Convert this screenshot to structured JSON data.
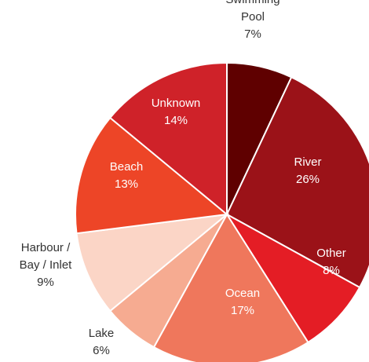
{
  "chart_data": {
    "type": "pie",
    "start_angle_deg": 0,
    "direction": "clockwise",
    "slices": [
      {
        "label": [
          "Swimming",
          "Pool"
        ],
        "value_text": "7%",
        "value": 7,
        "color": "#5f0000",
        "label_color": "#333333",
        "label_placement": "outside"
      },
      {
        "label": [
          "River"
        ],
        "value_text": "26%",
        "value": 26,
        "color": "#9b1218",
        "label_color": "#ffffff",
        "label_placement": "inside"
      },
      {
        "label": [
          "Other"
        ],
        "value_text": "8%",
        "value": 8,
        "color": "#e41d25",
        "label_color": "#ffffff",
        "label_placement": "inside"
      },
      {
        "label": [
          "Ocean"
        ],
        "value_text": "17%",
        "value": 17,
        "color": "#ef775c",
        "label_color": "#ffffff",
        "label_placement": "inside"
      },
      {
        "label": [
          "Lake"
        ],
        "value_text": "6%",
        "value": 6,
        "color": "#f6ab91",
        "label_color": "#333333",
        "label_placement": "outside"
      },
      {
        "label": [
          "Harbour /",
          "Bay / Inlet"
        ],
        "value_text": "9%",
        "value": 9,
        "color": "#fbd5c6",
        "label_color": "#333333",
        "label_placement": "outside"
      },
      {
        "label": [
          "Beach"
        ],
        "value_text": "13%",
        "value": 13,
        "color": "#ed4527",
        "label_color": "#ffffff",
        "label_placement": "inside"
      },
      {
        "label": [
          "Unknown"
        ],
        "value_text": "14%",
        "value": 14,
        "color": "#cf2229",
        "label_color": "#ffffff",
        "label_placement": "inside"
      }
    ]
  }
}
